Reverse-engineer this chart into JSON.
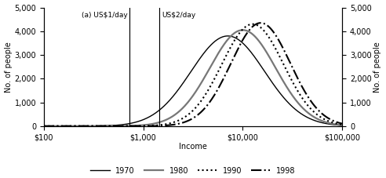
{
  "title": "",
  "xlabel": "Income",
  "ylabel_left": "No. of people",
  "ylabel_right": "No. of people",
  "xmin_log": 2.0,
  "xmax_log": 5.0,
  "ymin": 0,
  "ymax": 5000,
  "yticks": [
    0,
    1000,
    2000,
    3000,
    4000,
    5000
  ],
  "xtick_values": [
    100,
    1000,
    10000,
    100000
  ],
  "xtick_labels": [
    "$100",
    "$1,000",
    "$10,000",
    "$100,000"
  ],
  "vline1_x": 730,
  "vline1_label": "(a) US$1/day",
  "vline2_x": 1460,
  "vline2_label": "US$2/day",
  "lines": [
    {
      "year": "1970",
      "mu_log10": 3.85,
      "sigma_log10": 0.37,
      "peak": 3800,
      "style": "-",
      "color": "#000000",
      "lw": 1.0
    },
    {
      "year": "1980",
      "mu_log10": 4.0,
      "sigma_log10": 0.33,
      "peak": 4050,
      "style": "-",
      "color": "#777777",
      "lw": 1.6
    },
    {
      "year": "1990",
      "mu_log10": 4.1,
      "sigma_log10": 0.31,
      "peak": 4300,
      "style": ":",
      "color": "#000000",
      "lw": 1.5
    },
    {
      "year": "1998",
      "mu_log10": 4.18,
      "sigma_log10": 0.3,
      "peak": 4350,
      "style": "-.",
      "color": "#000000",
      "lw": 1.5
    }
  ],
  "legend_entries": [
    {
      "label": "1970",
      "style": "-",
      "color": "#000000",
      "lw": 1.0
    },
    {
      "label": "1980",
      "style": "-",
      "color": "#777777",
      "lw": 1.6
    },
    {
      "label": "1990",
      "style": ":",
      "color": "#000000",
      "lw": 1.5
    },
    {
      "label": "1998",
      "style": "-.",
      "color": "#000000",
      "lw": 1.5
    }
  ],
  "background_color": "#ffffff"
}
